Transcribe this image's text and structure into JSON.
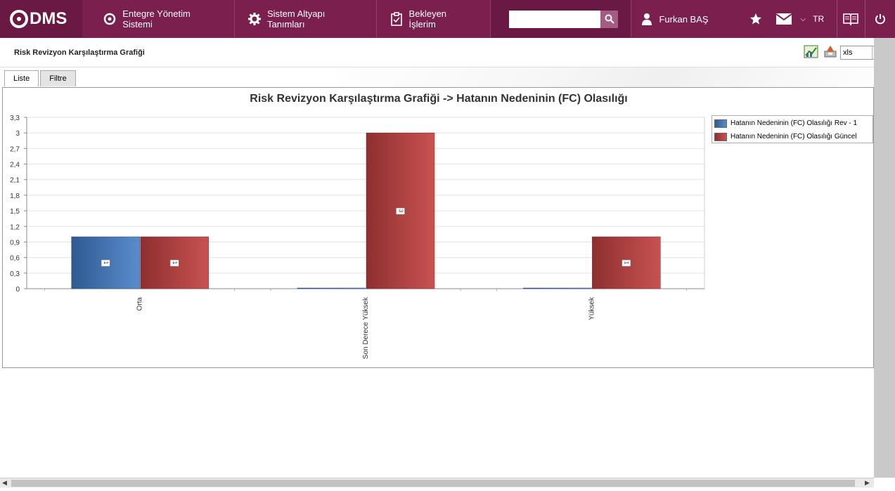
{
  "app": {
    "logo_text": "DMS",
    "nav": [
      {
        "label": "Entegre Yönetim Sistemi",
        "icon": "q-logo-icon"
      },
      {
        "label": "Sistem Altyapı Tanımları",
        "icon": "gear-icon"
      },
      {
        "label": "Bekleyen İşlerim",
        "icon": "clipboard-icon"
      }
    ],
    "search_placeholder": "",
    "user_name": "Furkan BAŞ",
    "language": "TR",
    "colors": {
      "topbar": "#7a1f4e",
      "series1": "#3a6aa6",
      "series2": "#b84444"
    }
  },
  "page": {
    "title": "Risk Revizyon Karşılaştırma Grafiği",
    "export_format": "xls",
    "tabs": [
      {
        "label": "Liste",
        "active": true
      },
      {
        "label": "Filtre",
        "active": false
      }
    ]
  },
  "chart_data": {
    "type": "bar",
    "title": "Risk Revizyon Karşılaştırma Grafiği -> Hatanın Nedeninin (FC) Olasılığı",
    "categories": [
      "Orta",
      "Son Derece Yüksek",
      "Yüksek"
    ],
    "series": [
      {
        "name": "Hatanın Nedeninin (FC) Olasılığı  Rev - 1",
        "values": [
          1,
          0,
          0
        ]
      },
      {
        "name": "Hatanın Nedeninin (FC) Olasılığı  Güncel",
        "values": [
          1,
          3,
          1
        ]
      }
    ],
    "data_labels": [
      [
        "1",
        "",
        ""
      ],
      [
        "1",
        "3",
        "1"
      ]
    ],
    "ylim": [
      0,
      3.3
    ],
    "yticks": [
      "0",
      "0,3",
      "0,6",
      "0,9",
      "1,2",
      "1,5",
      "1,8",
      "2,1",
      "2,4",
      "2,7",
      "3",
      "3,3"
    ],
    "grid": true,
    "legend_position": "top-right"
  }
}
